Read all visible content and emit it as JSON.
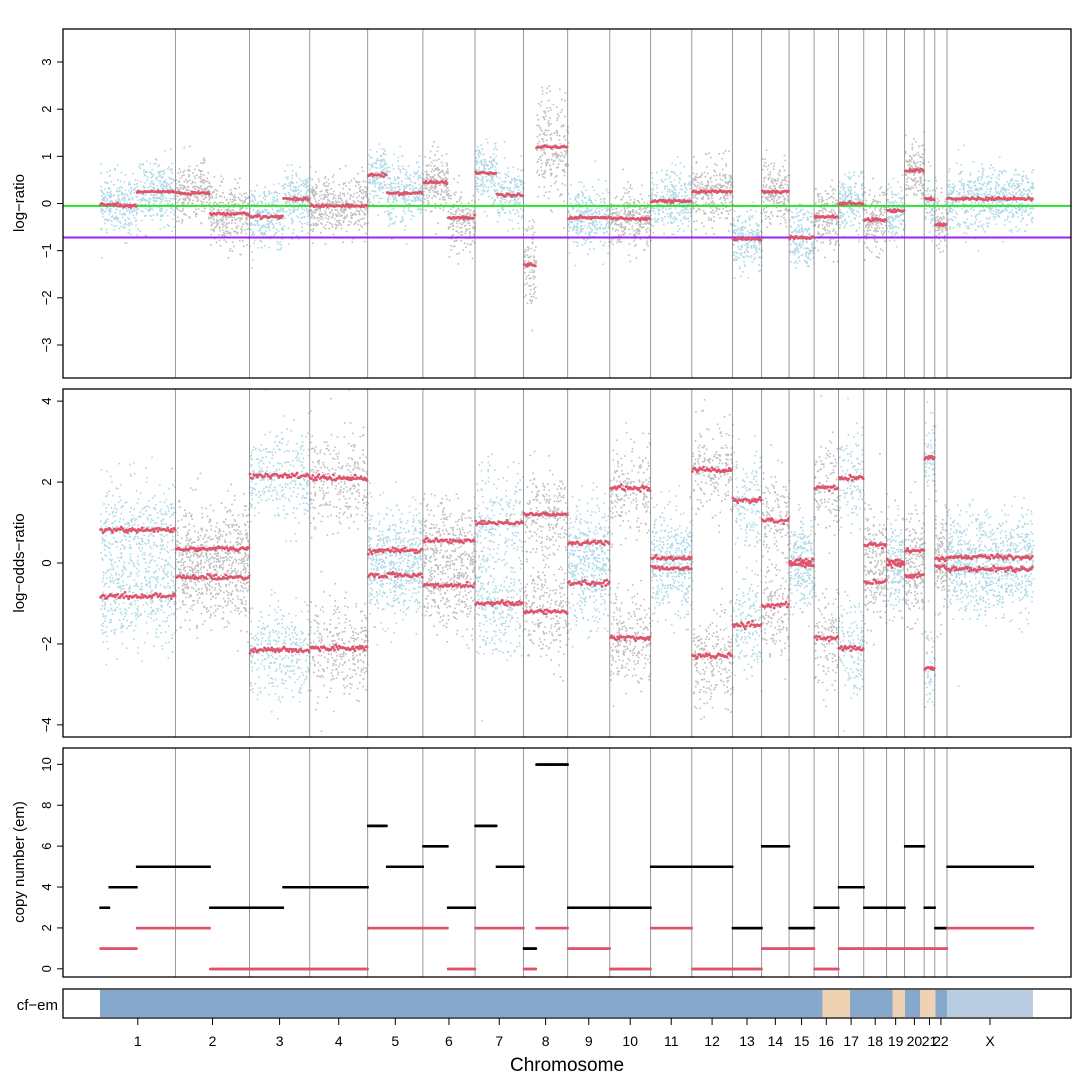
{
  "colors": {
    "light_blue": "#add8e6",
    "gray": "#bebebe",
    "segment_red": "#df536b",
    "green_line": "#28e028",
    "purple_line": "#a020f0",
    "cf_blue": "#86a8cc",
    "cf_light": "#b9cde3",
    "cf_tan": "#efd2b2",
    "frame": "#000000"
  },
  "xlabel": "Chromosome",
  "chromosomes": [
    {
      "name": "1",
      "label": "1",
      "start": 0,
      "end": 248
    },
    {
      "name": "2",
      "label": "2",
      "start": 248,
      "end": 490
    },
    {
      "name": "3",
      "label": "3",
      "start": 490,
      "end": 688
    },
    {
      "name": "4",
      "label": "4",
      "start": 688,
      "end": 878
    },
    {
      "name": "5",
      "label": "5",
      "start": 878,
      "end": 1059
    },
    {
      "name": "6",
      "label": "6",
      "start": 1059,
      "end": 1230
    },
    {
      "name": "7",
      "label": "7",
      "start": 1230,
      "end": 1389
    },
    {
      "name": "8",
      "label": "8",
      "start": 1389,
      "end": 1534
    },
    {
      "name": "9",
      "label": "9",
      "start": 1534,
      "end": 1672
    },
    {
      "name": "10",
      "label": "10",
      "start": 1672,
      "end": 1806
    },
    {
      "name": "11",
      "label": "11",
      "start": 1806,
      "end": 1941
    },
    {
      "name": "12",
      "label": "12",
      "start": 1941,
      "end": 2074
    },
    {
      "name": "13",
      "label": "13",
      "start": 2074,
      "end": 2170
    },
    {
      "name": "14",
      "label": "14",
      "start": 2170,
      "end": 2260
    },
    {
      "name": "15",
      "label": "15",
      "start": 2260,
      "end": 2342
    },
    {
      "name": "16",
      "label": "16",
      "start": 2342,
      "end": 2422
    },
    {
      "name": "17",
      "label": "17",
      "start": 2422,
      "end": 2505
    },
    {
      "name": "18",
      "label": "18",
      "start": 2505,
      "end": 2580
    },
    {
      "name": "19",
      "label": "19",
      "start": 2580,
      "end": 2639
    },
    {
      "name": "20",
      "label": "20",
      "start": 2639,
      "end": 2703
    },
    {
      "name": "21",
      "label": "21",
      "start": 2703,
      "end": 2738
    },
    {
      "name": "22",
      "label": "22",
      "start": 2738,
      "end": 2778
    },
    {
      "name": "X",
      "label": "X",
      "start": 2778,
      "end": 3060
    }
  ],
  "chart_data": [
    {
      "type": "scatter",
      "id": "log-ratio",
      "title": "",
      "ylabel": "log−ratio",
      "ylim": [
        -3.7,
        3.7
      ],
      "yticks": [
        -3,
        -2,
        -1,
        0,
        1,
        2,
        3
      ],
      "hlines": [
        {
          "name": "green",
          "y": -0.05,
          "color": "#28e028"
        },
        {
          "name": "purple",
          "y": -0.72,
          "color": "#a020f0"
        }
      ],
      "segments": [
        {
          "chrom": "1",
          "start": 0,
          "end": 60,
          "value": -0.02
        },
        {
          "chrom": "1",
          "start": 60,
          "end": 120,
          "value": -0.05
        },
        {
          "chrom": "1",
          "start": 120,
          "end": 248,
          "value": 0.25
        },
        {
          "chrom": "2",
          "start": 248,
          "end": 360,
          "value": 0.22
        },
        {
          "chrom": "2",
          "start": 360,
          "end": 490,
          "value": -0.22
        },
        {
          "chrom": "3",
          "start": 490,
          "end": 600,
          "value": -0.28
        },
        {
          "chrom": "3",
          "start": 600,
          "end": 688,
          "value": 0.1
        },
        {
          "chrom": "4",
          "start": 688,
          "end": 878,
          "value": -0.05
        },
        {
          "chrom": "5",
          "start": 878,
          "end": 940,
          "value": 0.6
        },
        {
          "chrom": "5",
          "start": 940,
          "end": 1059,
          "value": 0.22
        },
        {
          "chrom": "6",
          "start": 1059,
          "end": 1140,
          "value": 0.45
        },
        {
          "chrom": "6",
          "start": 1140,
          "end": 1230,
          "value": -0.3
        },
        {
          "chrom": "7",
          "start": 1230,
          "end": 1300,
          "value": 0.65
        },
        {
          "chrom": "7",
          "start": 1300,
          "end": 1389,
          "value": 0.18
        },
        {
          "chrom": "8",
          "start": 1389,
          "end": 1430,
          "value": -1.3
        },
        {
          "chrom": "8",
          "start": 1430,
          "end": 1534,
          "value": 1.2
        },
        {
          "chrom": "9",
          "start": 1534,
          "end": 1672,
          "value": -0.3
        },
        {
          "chrom": "10",
          "start": 1672,
          "end": 1806,
          "value": -0.32
        },
        {
          "chrom": "11",
          "start": 1806,
          "end": 1941,
          "value": 0.05
        },
        {
          "chrom": "12",
          "start": 1941,
          "end": 2074,
          "value": 0.25
        },
        {
          "chrom": "13",
          "start": 2074,
          "end": 2170,
          "value": -0.75
        },
        {
          "chrom": "14",
          "start": 2170,
          "end": 2260,
          "value": 0.25
        },
        {
          "chrom": "15",
          "start": 2260,
          "end": 2342,
          "value": -0.72
        },
        {
          "chrom": "16",
          "start": 2342,
          "end": 2422,
          "value": -0.28
        },
        {
          "chrom": "17",
          "start": 2422,
          "end": 2505,
          "value": 0.0
        },
        {
          "chrom": "18",
          "start": 2505,
          "end": 2580,
          "value": -0.35
        },
        {
          "chrom": "19",
          "start": 2580,
          "end": 2639,
          "value": -0.15
        },
        {
          "chrom": "20",
          "start": 2639,
          "end": 2703,
          "value": 0.7
        },
        {
          "chrom": "21",
          "start": 2703,
          "end": 2738,
          "value": 0.1
        },
        {
          "chrom": "22",
          "start": 2738,
          "end": 2778,
          "value": -0.45
        },
        {
          "chrom": "X",
          "start": 2778,
          "end": 3060,
          "value": 0.1
        }
      ]
    },
    {
      "type": "scatter",
      "id": "log-odds-ratio",
      "title": "",
      "ylabel": "log−odds−ratio",
      "ylim": [
        -4.3,
        4.3
      ],
      "yticks": [
        -4,
        -2,
        0,
        2,
        4
      ],
      "segments": [
        {
          "chrom": "1",
          "start": 0,
          "end": 248,
          "value": 0.82,
          "mirror": true
        },
        {
          "chrom": "2",
          "start": 248,
          "end": 490,
          "value": 0.35,
          "mirror": true
        },
        {
          "chrom": "3",
          "start": 490,
          "end": 688,
          "value": 2.15,
          "mirror": true
        },
        {
          "chrom": "4",
          "start": 688,
          "end": 878,
          "value": 2.1,
          "mirror": true
        },
        {
          "chrom": "5",
          "start": 878,
          "end": 1059,
          "value": 0.3,
          "mirror": true
        },
        {
          "chrom": "6",
          "start": 1059,
          "end": 1230,
          "value": 0.55,
          "mirror": true
        },
        {
          "chrom": "7",
          "start": 1230,
          "end": 1389,
          "value": 1.0,
          "mirror": true
        },
        {
          "chrom": "8",
          "start": 1389,
          "end": 1534,
          "value": 1.2,
          "mirror": true
        },
        {
          "chrom": "9",
          "start": 1534,
          "end": 1672,
          "value": 0.5,
          "mirror": true
        },
        {
          "chrom": "10",
          "start": 1672,
          "end": 1806,
          "value": 1.85,
          "mirror": true
        },
        {
          "chrom": "11",
          "start": 1806,
          "end": 1941,
          "value": 0.12,
          "mirror": true
        },
        {
          "chrom": "12",
          "start": 1941,
          "end": 2074,
          "value": 2.3,
          "mirror": true
        },
        {
          "chrom": "13",
          "start": 2074,
          "end": 2170,
          "value": 1.55,
          "mirror": true
        },
        {
          "chrom": "14",
          "start": 2170,
          "end": 2260,
          "value": 1.05,
          "mirror": true
        },
        {
          "chrom": "15",
          "start": 2260,
          "end": 2342,
          "value": 0.05,
          "mirror": true
        },
        {
          "chrom": "16",
          "start": 2342,
          "end": 2422,
          "value": 1.85,
          "mirror": true
        },
        {
          "chrom": "17",
          "start": 2422,
          "end": 2505,
          "value": 2.1,
          "mirror": true
        },
        {
          "chrom": "18",
          "start": 2505,
          "end": 2580,
          "value": 0.45,
          "mirror": true
        },
        {
          "chrom": "19",
          "start": 2580,
          "end": 2639,
          "value": 0.05,
          "mirror": true
        },
        {
          "chrom": "20",
          "start": 2639,
          "end": 2703,
          "value": 0.3,
          "mirror": true
        },
        {
          "chrom": "21",
          "start": 2703,
          "end": 2738,
          "value": 2.6,
          "mirror": true
        },
        {
          "chrom": "22",
          "start": 2738,
          "end": 2778,
          "value": 0.1,
          "mirror": true
        },
        {
          "chrom": "X",
          "start": 2778,
          "end": 3060,
          "value": 0.15,
          "mirror": true
        }
      ]
    },
    {
      "type": "scatter",
      "id": "copy-number",
      "title": "",
      "ylabel": "copy number (em)",
      "ylim": [
        -0.4,
        10.8
      ],
      "yticks": [
        0,
        2,
        4,
        6,
        8,
        10
      ],
      "series": [
        {
          "name": "total",
          "color": "#000000",
          "values": [
            {
              "chrom": "1",
              "start": 0,
              "end": 30,
              "value": 3
            },
            {
              "chrom": "1",
              "start": 30,
              "end": 120,
              "value": 4
            },
            {
              "chrom": "1",
              "start": 120,
              "end": 248,
              "value": 5
            },
            {
              "chrom": "2",
              "start": 248,
              "end": 360,
              "value": 5
            },
            {
              "chrom": "2",
              "start": 360,
              "end": 490,
              "value": 3
            },
            {
              "chrom": "3",
              "start": 490,
              "end": 600,
              "value": 3
            },
            {
              "chrom": "3",
              "start": 600,
              "end": 688,
              "value": 4
            },
            {
              "chrom": "4",
              "start": 688,
              "end": 878,
              "value": 4
            },
            {
              "chrom": "5",
              "start": 878,
              "end": 940,
              "value": 7
            },
            {
              "chrom": "5",
              "start": 940,
              "end": 1059,
              "value": 5
            },
            {
              "chrom": "6",
              "start": 1059,
              "end": 1140,
              "value": 6
            },
            {
              "chrom": "6",
              "start": 1140,
              "end": 1230,
              "value": 3
            },
            {
              "chrom": "7",
              "start": 1230,
              "end": 1300,
              "value": 7
            },
            {
              "chrom": "7",
              "start": 1300,
              "end": 1389,
              "value": 5
            },
            {
              "chrom": "8",
              "start": 1389,
              "end": 1430,
              "value": 1
            },
            {
              "chrom": "8",
              "start": 1430,
              "end": 1534,
              "value": 10
            },
            {
              "chrom": "9",
              "start": 1534,
              "end": 1672,
              "value": 3
            },
            {
              "chrom": "10",
              "start": 1672,
              "end": 1806,
              "value": 3
            },
            {
              "chrom": "11",
              "start": 1806,
              "end": 1941,
              "value": 5
            },
            {
              "chrom": "12",
              "start": 1941,
              "end": 2074,
              "value": 5
            },
            {
              "chrom": "13",
              "start": 2074,
              "end": 2170,
              "value": 2
            },
            {
              "chrom": "14",
              "start": 2170,
              "end": 2260,
              "value": 6
            },
            {
              "chrom": "15",
              "start": 2260,
              "end": 2342,
              "value": 2
            },
            {
              "chrom": "16",
              "start": 2342,
              "end": 2422,
              "value": 3
            },
            {
              "chrom": "17",
              "start": 2422,
              "end": 2505,
              "value": 4
            },
            {
              "chrom": "18",
              "start": 2505,
              "end": 2580,
              "value": 3
            },
            {
              "chrom": "19",
              "start": 2580,
              "end": 2639,
              "value": 3
            },
            {
              "chrom": "20",
              "start": 2639,
              "end": 2703,
              "value": 6
            },
            {
              "chrom": "21",
              "start": 2703,
              "end": 2738,
              "value": 3
            },
            {
              "chrom": "22",
              "start": 2738,
              "end": 2778,
              "value": 2
            },
            {
              "chrom": "X",
              "start": 2778,
              "end": 3060,
              "value": 5
            }
          ]
        },
        {
          "name": "minor",
          "color": "#df536b",
          "values": [
            {
              "chrom": "1",
              "start": 0,
              "end": 120,
              "value": 1
            },
            {
              "chrom": "1",
              "start": 120,
              "end": 248,
              "value": 2
            },
            {
              "chrom": "2",
              "start": 248,
              "end": 360,
              "value": 2
            },
            {
              "chrom": "2",
              "start": 360,
              "end": 490,
              "value": 0
            },
            {
              "chrom": "3",
              "start": 490,
              "end": 688,
              "value": 0
            },
            {
              "chrom": "4",
              "start": 688,
              "end": 878,
              "value": 0
            },
            {
              "chrom": "5",
              "start": 878,
              "end": 940,
              "value": 2
            },
            {
              "chrom": "5",
              "start": 940,
              "end": 1059,
              "value": 2
            },
            {
              "chrom": "6",
              "start": 1059,
              "end": 1140,
              "value": 2
            },
            {
              "chrom": "6",
              "start": 1140,
              "end": 1230,
              "value": 0
            },
            {
              "chrom": "7",
              "start": 1230,
              "end": 1389,
              "value": 2
            },
            {
              "chrom": "8",
              "start": 1389,
              "end": 1430,
              "value": 0
            },
            {
              "chrom": "8",
              "start": 1430,
              "end": 1534,
              "value": 2
            },
            {
              "chrom": "9",
              "start": 1534,
              "end": 1672,
              "value": 1
            },
            {
              "chrom": "10",
              "start": 1672,
              "end": 1806,
              "value": 0
            },
            {
              "chrom": "11",
              "start": 1806,
              "end": 1941,
              "value": 2
            },
            {
              "chrom": "12",
              "start": 1941,
              "end": 2074,
              "value": 0
            },
            {
              "chrom": "13",
              "start": 2074,
              "end": 2170,
              "value": 0
            },
            {
              "chrom": "14",
              "start": 2170,
              "end": 2260,
              "value": 1
            },
            {
              "chrom": "15",
              "start": 2260,
              "end": 2342,
              "value": 1
            },
            {
              "chrom": "16",
              "start": 2342,
              "end": 2422,
              "value": 0
            },
            {
              "chrom": "17",
              "start": 2422,
              "end": 2505,
              "value": 1
            },
            {
              "chrom": "18",
              "start": 2505,
              "end": 2580,
              "value": 1
            },
            {
              "chrom": "19",
              "start": 2580,
              "end": 2639,
              "value": 1
            },
            {
              "chrom": "20",
              "start": 2639,
              "end": 2703,
              "value": 1
            },
            {
              "chrom": "21",
              "start": 2703,
              "end": 2738,
              "value": 1
            },
            {
              "chrom": "22",
              "start": 2738,
              "end": 2778,
              "value": 1
            },
            {
              "chrom": "X",
              "start": 2778,
              "end": 3060,
              "value": 2
            }
          ]
        }
      ]
    },
    {
      "type": "heatmap",
      "id": "cf-em",
      "ylabel": "cf−em",
      "bands": [
        {
          "start": 0,
          "end": 2370,
          "color": "#86a8cc"
        },
        {
          "start": 2370,
          "end": 2460,
          "color": "#efd2b2"
        },
        {
          "start": 2460,
          "end": 2600,
          "color": "#86a8cc"
        },
        {
          "start": 2600,
          "end": 2640,
          "color": "#efd2b2"
        },
        {
          "start": 2640,
          "end": 2690,
          "color": "#86a8cc"
        },
        {
          "start": 2690,
          "end": 2740,
          "color": "#efd2b2"
        },
        {
          "start": 2740,
          "end": 2778,
          "color": "#86a8cc"
        },
        {
          "start": 2778,
          "end": 3060,
          "color": "#b9cde3"
        }
      ]
    }
  ]
}
